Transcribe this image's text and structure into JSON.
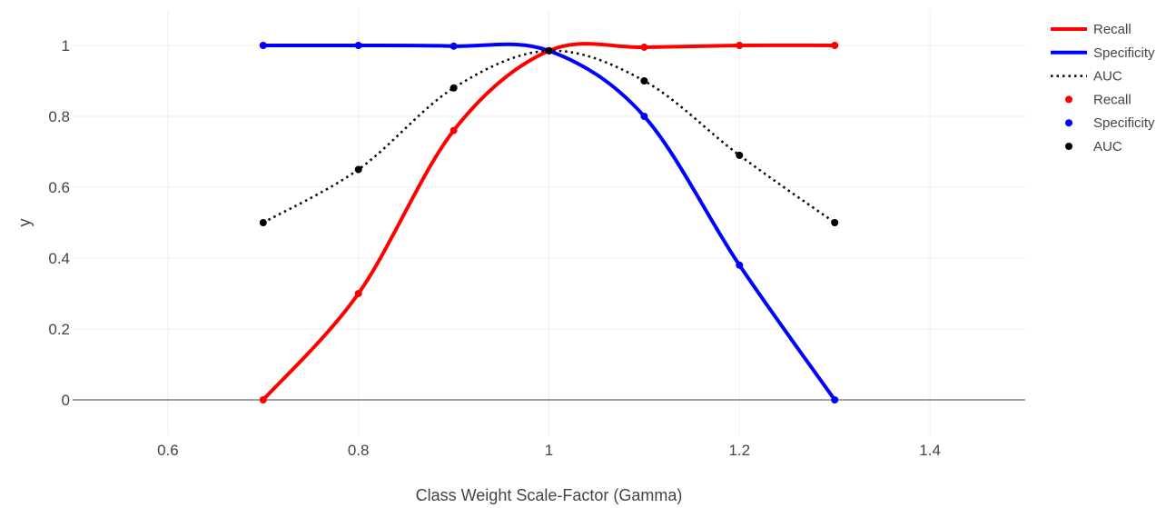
{
  "chart_data": {
    "type": "line",
    "xlabel": "Class Weight Scale-Factor (Gamma)",
    "ylabel": "y",
    "xlim": [
      0.5,
      1.5
    ],
    "ylim": [
      -0.1,
      1.1
    ],
    "x_ticks": [
      0.6,
      0.8,
      1,
      1.2,
      1.4
    ],
    "x_tick_labels": [
      "0.6",
      "0.8",
      "1",
      "1.2",
      "1.4"
    ],
    "y_ticks": [
      0,
      0.2,
      0.4,
      0.6,
      0.8,
      1
    ],
    "y_tick_labels": [
      "0",
      "0.2",
      "0.4",
      "0.6",
      "0.8",
      "1"
    ],
    "grid": true,
    "legend_position": "top-right",
    "x": [
      0.7,
      0.8,
      0.9,
      1.0,
      1.1,
      1.2,
      1.3
    ],
    "series": [
      {
        "name": "Recall",
        "kind": "spline",
        "color": "#ff0000",
        "dash": "solid",
        "values": [
          0.0,
          0.3,
          0.76,
          0.985,
          0.995,
          1.0,
          1.0
        ]
      },
      {
        "name": "Specificity",
        "kind": "spline",
        "color": "#0000ff",
        "dash": "solid",
        "values": [
          1.0,
          1.0,
          0.998,
          0.985,
          0.8,
          0.38,
          0.0
        ]
      },
      {
        "name": "AUC",
        "kind": "spline",
        "color": "#000000",
        "dash": "dot",
        "values": [
          0.5,
          0.65,
          0.88,
          0.985,
          0.9,
          0.69,
          0.5
        ]
      },
      {
        "name": "Recall",
        "kind": "markers",
        "color": "#ff0000",
        "values": [
          0.0,
          0.3,
          0.76,
          0.985,
          0.995,
          1.0,
          1.0
        ]
      },
      {
        "name": "Specificity",
        "kind": "markers",
        "color": "#0000ff",
        "values": [
          1.0,
          1.0,
          0.998,
          0.985,
          0.8,
          0.38,
          0.0
        ]
      },
      {
        "name": "AUC",
        "kind": "markers",
        "color": "#000000",
        "values": [
          0.5,
          0.65,
          0.88,
          0.985,
          0.9,
          0.69,
          0.5
        ]
      }
    ]
  }
}
